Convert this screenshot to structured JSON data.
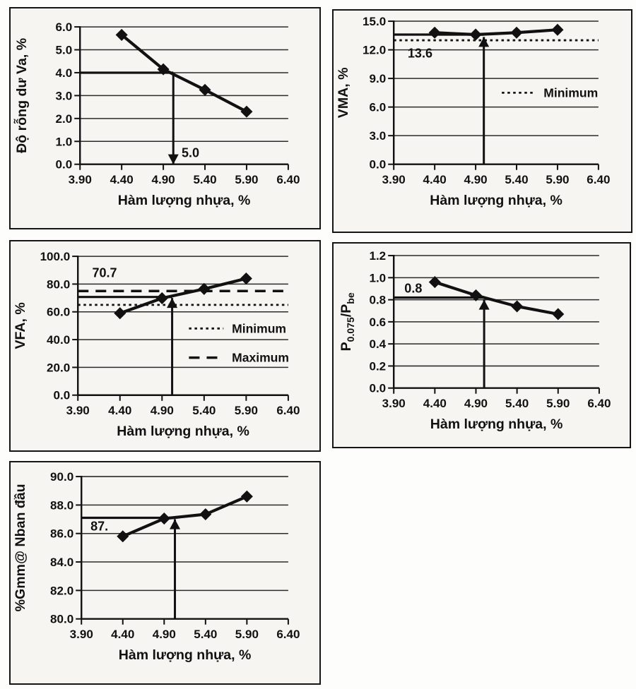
{
  "page": {
    "description": "Marshall asphalt mix design parameter charts vs binder content",
    "ink_color": "#111111",
    "panel_background": "#f6f5f1"
  },
  "chart_data": [
    {
      "id": "va",
      "type": "line",
      "ylabel": "Độ rỗng dư Va, %",
      "xlabel": "Hàm lượng nhựa, %",
      "x": [
        4.4,
        4.9,
        5.4,
        5.9
      ],
      "values": [
        5.65,
        4.15,
        3.25,
        2.3
      ],
      "xlim": [
        3.9,
        6.4
      ],
      "ylim": [
        0,
        6
      ],
      "x_ticks": [
        3.9,
        4.4,
        4.9,
        5.4,
        5.9,
        6.4
      ],
      "x_tick_labels": [
        "3.90",
        "4.40",
        "4.90",
        "5.40",
        "5.90",
        "6.40"
      ],
      "y_ticks": [
        0,
        1,
        2,
        3,
        4,
        5,
        6
      ],
      "y_tick_labels": [
        "0.0",
        "1.0",
        "2.0",
        "3.0",
        "4.0",
        "5.0",
        "6.0"
      ],
      "grid": "horizontal",
      "legend_position": "none",
      "ref_lines": [],
      "target": {
        "hline_y": 4.0,
        "vline_x": 5.02,
        "vline_y1": 4.0,
        "vline_y2": 0,
        "arrow": "down"
      },
      "annotation": {
        "text": "5.0",
        "x": 5.12,
        "y": 0.32
      },
      "legend": []
    },
    {
      "id": "vma",
      "type": "line",
      "ylabel": "VMA, %",
      "xlabel": "Hàm lượng nhựa, %",
      "x": [
        4.4,
        4.9,
        5.4,
        5.9
      ],
      "values": [
        13.8,
        13.6,
        13.8,
        14.1
      ],
      "xlim": [
        3.9,
        6.4
      ],
      "ylim": [
        0,
        15
      ],
      "x_ticks": [
        3.9,
        4.4,
        4.9,
        5.4,
        5.9,
        6.4
      ],
      "x_tick_labels": [
        "3.90",
        "4.40",
        "4.90",
        "5.40",
        "5.90",
        "6.40"
      ],
      "y_ticks": [
        0,
        3,
        6,
        9,
        12,
        15
      ],
      "y_tick_labels": [
        "0.0",
        "3.0",
        "6.0",
        "9.0",
        "12.0",
        "15.0"
      ],
      "grid": "horizontal",
      "legend_position": "right-middle",
      "ref_lines": [
        {
          "y": 13.0,
          "style": "dotted",
          "name": "Minimum"
        }
      ],
      "target": {
        "hline_y": 13.6,
        "vline_x": 5.0,
        "vline_y1": 0,
        "vline_y2": 13.35,
        "arrow": "up"
      },
      "annotation": {
        "text": "13.6",
        "x": 4.07,
        "y": 11.2
      },
      "legend": [
        {
          "label": "Minimum",
          "style": "dotted",
          "x1": 5.22,
          "x2": 5.63,
          "tx": 5.73,
          "y": 7.5
        }
      ]
    },
    {
      "id": "vfa",
      "type": "line",
      "ylabel": "VFA, %",
      "xlabel": "Hàm lượng nhựa, %",
      "x": [
        4.4,
        4.9,
        5.4,
        5.9
      ],
      "values": [
        59,
        69.8,
        76.5,
        84
      ],
      "xlim": [
        3.9,
        6.4
      ],
      "ylim": [
        0,
        100
      ],
      "x_ticks": [
        3.9,
        4.4,
        4.9,
        5.4,
        5.9,
        6.4
      ],
      "x_tick_labels": [
        "3.90",
        "4.40",
        "4.90",
        "5.40",
        "5.90",
        "6.40"
      ],
      "y_ticks": [
        0,
        20,
        40,
        60,
        80,
        100
      ],
      "y_tick_labels": [
        "0.0",
        "20.0",
        "40.0",
        "60.0",
        "80.0",
        "100.0"
      ],
      "grid": "horizontal",
      "legend_position": "right-middle",
      "ref_lines": [
        {
          "y": 65,
          "style": "dotted",
          "name": "Minimum"
        },
        {
          "y": 75,
          "style": "dashed",
          "name": "Maximum"
        }
      ],
      "target": {
        "hline_y": 70.7,
        "vline_x": 5.02,
        "vline_y1": 0,
        "vline_y2": 70,
        "arrow": "up"
      },
      "annotation": {
        "text": "70.7",
        "x": 4.07,
        "y": 85
      },
      "legend": [
        {
          "label": "Minimum",
          "style": "dotted",
          "x1": 5.22,
          "x2": 5.63,
          "tx": 5.73,
          "y": 48
        },
        {
          "label": "Maximum",
          "style": "dashed",
          "x1": 5.22,
          "x2": 5.63,
          "tx": 5.73,
          "y": 27
        }
      ]
    },
    {
      "id": "p075",
      "type": "line",
      "ylabel": "P0.075/Pbe",
      "ylabel_parts": [
        {
          "t": "P",
          "sub": false
        },
        {
          "t": "0.075",
          "sub": true
        },
        {
          "t": "/P",
          "sub": false
        },
        {
          "t": "be",
          "sub": true
        }
      ],
      "xlabel": "Hàm lượng nhựa, %",
      "x": [
        4.4,
        4.9,
        5.4,
        5.9
      ],
      "values": [
        0.96,
        0.84,
        0.74,
        0.67
      ],
      "xlim": [
        3.9,
        6.4
      ],
      "ylim": [
        0,
        1.2
      ],
      "x_ticks": [
        3.9,
        4.4,
        4.9,
        5.4,
        5.9,
        6.4
      ],
      "x_tick_labels": [
        "3.90",
        "4.40",
        "4.90",
        "5.40",
        "5.90",
        "6.40"
      ],
      "y_ticks": [
        0,
        0.2,
        0.4,
        0.6,
        0.8,
        1.0,
        1.2
      ],
      "y_tick_labels": [
        "0.0",
        "0.2",
        "0.4",
        "0.6",
        "0.8",
        "1.0",
        "1.2"
      ],
      "grid": "horizontal",
      "legend_position": "none",
      "ref_lines": [],
      "target": {
        "hline_y": 0.82,
        "vline_x": 5.0,
        "vline_y1": 0,
        "vline_y2": 0.8,
        "arrow": "up"
      },
      "annotation": {
        "text": "0.8",
        "x": 4.03,
        "y": 0.865
      },
      "legend": []
    },
    {
      "id": "gmm",
      "type": "line",
      "ylabel": "%Gmm@ Nban đầu",
      "xlabel": "Hàm lượng nhựa, %",
      "x": [
        4.4,
        4.9,
        5.4,
        5.9
      ],
      "values": [
        85.8,
        87.05,
        87.35,
        88.6
      ],
      "xlim": [
        3.9,
        6.4
      ],
      "ylim": [
        80,
        90
      ],
      "x_ticks": [
        3.9,
        4.4,
        4.9,
        5.4,
        5.9,
        6.4
      ],
      "x_tick_labels": [
        "3.90",
        "4.40",
        "4.90",
        "5.40",
        "5.90",
        "6.40"
      ],
      "y_ticks": [
        80,
        82,
        84,
        86,
        88,
        90
      ],
      "y_tick_labels": [
        "80.0",
        "82.0",
        "84.0",
        "86.0",
        "88.0",
        "90.0"
      ],
      "grid": "horizontal",
      "legend_position": "none",
      "ref_lines": [],
      "target": {
        "hline_y": 87.1,
        "vline_x": 5.03,
        "vline_y1": 80,
        "vline_y2": 87.0,
        "arrow": "up"
      },
      "annotation": {
        "text": "87.",
        "x": 4.01,
        "y": 86.2
      },
      "legend": []
    }
  ]
}
